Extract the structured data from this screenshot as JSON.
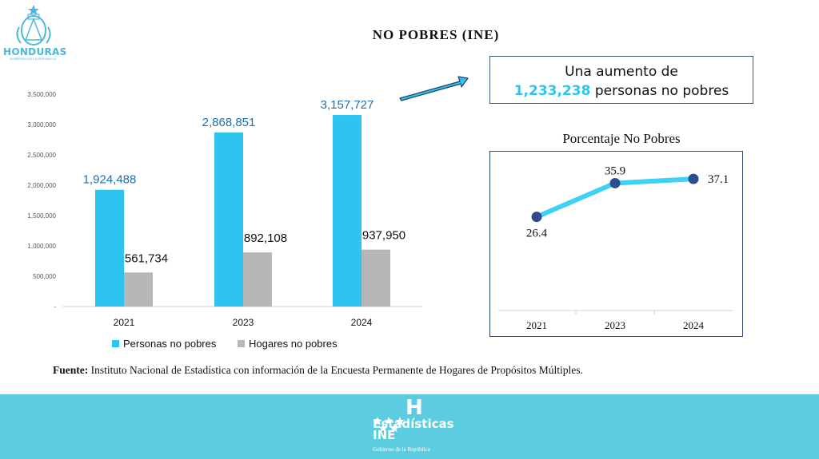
{
  "header": {
    "logo_text": "HONDURAS",
    "logo_subtitle": "GOBIERNO DE LA REPÚBLICA",
    "title": "NO POBRES (INE)"
  },
  "callout": {
    "line1": "Una aumento de",
    "number": "1,233,238",
    "line2_rest": " personas no pobres"
  },
  "colors": {
    "blue": "#2ec4f0",
    "gray": "#b7b7b7",
    "line": "#3fd0f5",
    "point": "#2c4d8f",
    "footer": "#5ccde0"
  },
  "chart_data": [
    {
      "type": "bar",
      "title": "",
      "categories": [
        "2021",
        "2023",
        "2024"
      ],
      "series": [
        {
          "name": "Personas no pobres",
          "values": [
            1924488,
            2868851,
            3157727
          ],
          "labels": [
            "1,924,488",
            "2,868,851",
            "3,157,727"
          ]
        },
        {
          "name": "Hogares no pobres",
          "values": [
            561734,
            892108,
            937950
          ],
          "labels": [
            "561,734",
            "892,108",
            "937,950"
          ]
        }
      ],
      "ylim": [
        0,
        3500000
      ],
      "yticks": [
        "-",
        "500,000",
        "1,000,000",
        "1,500,000",
        "2,000,000",
        "2,500,000",
        "3,000,000",
        "3,500,000"
      ],
      "legend": "bottom",
      "grid": false
    },
    {
      "type": "line",
      "title": "Porcentaje No Pobres",
      "x": [
        "2021",
        "2023",
        "2024"
      ],
      "series": [
        {
          "values": [
            26.4,
            35.9,
            37.1
          ],
          "labels": [
            "26.4",
            "35.9",
            "37.1"
          ]
        }
      ],
      "ylim": [
        0,
        45
      ],
      "grid": false,
      "legend": "none"
    }
  ],
  "source": {
    "label": "Fuente:",
    "text": " Instituto Nacional de Estadística con información de la Encuesta Permanente de Hogares de Propósitos Múltiples."
  },
  "footer": {
    "brand": "Estadísticas",
    "brand2": "INE",
    "subtitle": "Gobierno de la República",
    "logo_letter": "H",
    "icon": "stars-icon"
  }
}
